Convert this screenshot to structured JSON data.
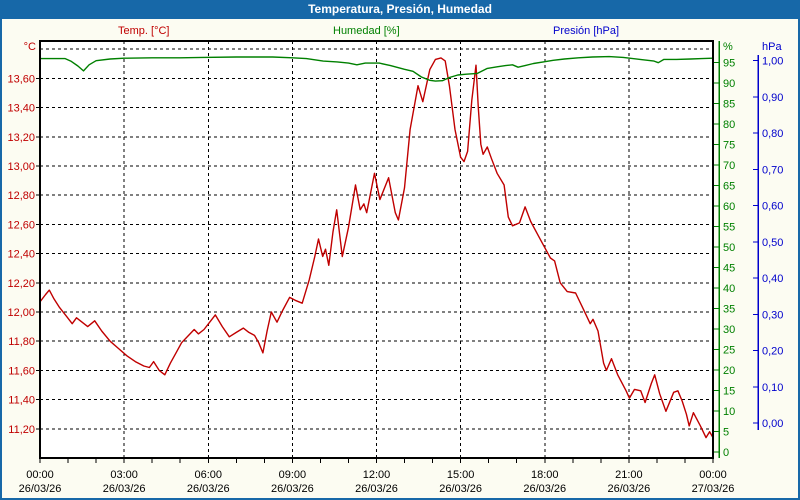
{
  "window": {
    "title": "Temperatura, Presión, Humedad"
  },
  "legend": {
    "temperature": "Temp. [°C]",
    "humidity": "Humedad [%]",
    "pressure": "Presión [hPa]"
  },
  "colors": {
    "titlebar_and_frame": "#1768A8",
    "temperature": "#C00000",
    "humidity": "#008000",
    "pressure": "#0000CC",
    "grid": "#000000",
    "plot_bg": "#FFFFFF",
    "page_bg": "#FCFCF2",
    "x_label_text": "#000000"
  },
  "chart_data": {
    "type": "line",
    "title": "Temperatura, Presión, Humedad",
    "legend_entries": [
      "Temp. [°C]",
      "Humedad [%]",
      "Presión [hPa]"
    ],
    "grid": "dashed",
    "x_axis": {
      "kind": "time",
      "start_hour": 0,
      "end_hour": 24,
      "major_tick_hours": 3,
      "minor_tick_hours": 1,
      "major_labels": [
        {
          "time": "00:00",
          "date": "26/03/26"
        },
        {
          "time": "03:00",
          "date": "26/03/26"
        },
        {
          "time": "06:00",
          "date": "26/03/26"
        },
        {
          "time": "09:00",
          "date": "26/03/26"
        },
        {
          "time": "12:00",
          "date": "26/03/26"
        },
        {
          "time": "15:00",
          "date": "26/03/26"
        },
        {
          "time": "18:00",
          "date": "26/03/26"
        },
        {
          "time": "21:00",
          "date": "26/03/26"
        },
        {
          "time": "00:00",
          "date": "27/03/26"
        }
      ]
    },
    "y_axes": {
      "temperature": {
        "unit_label": "°C",
        "color": "#C00000",
        "side": "left",
        "top_value": 13.856,
        "bottom_value": 11.0,
        "tick_values": [
          13.6,
          13.4,
          13.2,
          13.0,
          12.8,
          12.6,
          12.4,
          12.2,
          12.0,
          11.8,
          11.6,
          11.4,
          11.2
        ],
        "tick_labels": [
          "13,60",
          "13,40",
          "13,20",
          "13,00",
          "12,80",
          "12,60",
          "12,40",
          "12,20",
          "12,00",
          "11,80",
          "11,60",
          "11,40",
          "11,20"
        ],
        "gridline_values": [
          13.8,
          13.6,
          13.4,
          13.2,
          13.0,
          12.8,
          12.6,
          12.4,
          12.2,
          12.0,
          11.8,
          11.6,
          11.4,
          11.2
        ]
      },
      "humidity": {
        "unit_label": "%",
        "color": "#008000",
        "side": "right-inner",
        "top_value": 100.3,
        "bottom_value": -1.5,
        "tick_values": [
          95,
          90,
          85,
          80,
          75,
          70,
          65,
          60,
          55,
          50,
          45,
          40,
          35,
          30,
          25,
          20,
          15,
          10,
          5,
          0
        ],
        "tick_labels": [
          "95",
          "90",
          "85",
          "80",
          "75",
          "70",
          "65",
          "60",
          "55",
          "50",
          "45",
          "40",
          "35",
          "30",
          "25",
          "20",
          "15",
          "10",
          "5",
          "0"
        ]
      },
      "pressure": {
        "unit_label": "hPa",
        "color": "#0000CC",
        "side": "right-outer",
        "top_value": 1.054,
        "bottom_value": -0.096,
        "tick_values": [
          1.0,
          0.9,
          0.8,
          0.7,
          0.6,
          0.5,
          0.4,
          0.3,
          0.2,
          0.1,
          0.0
        ],
        "tick_labels": [
          "1,00",
          "0,90",
          "0,80",
          "0,70",
          "0,60",
          "0,50",
          "0,40",
          "0,30",
          "0,20",
          "0,10",
          "0,00"
        ]
      }
    },
    "series": [
      {
        "name": "Temp. [°C]",
        "axis": "temperature",
        "color": "#C00000",
        "visible": true,
        "points": [
          [
            0,
            12.07
          ],
          [
            0.2,
            12.12
          ],
          [
            0.33,
            12.15
          ],
          [
            0.5,
            12.09
          ],
          [
            0.7,
            12.03
          ],
          [
            0.95,
            11.97
          ],
          [
            1.15,
            11.92
          ],
          [
            1.3,
            11.96
          ],
          [
            1.5,
            11.93
          ],
          [
            1.7,
            11.9
          ],
          [
            1.95,
            11.94
          ],
          [
            2.2,
            11.87
          ],
          [
            2.5,
            11.8
          ],
          [
            2.8,
            11.75
          ],
          [
            3.1,
            11.7
          ],
          [
            3.4,
            11.66
          ],
          [
            3.7,
            11.63
          ],
          [
            3.9,
            11.62
          ],
          [
            4.05,
            11.66
          ],
          [
            4.25,
            11.6
          ],
          [
            4.45,
            11.57
          ],
          [
            4.65,
            11.65
          ],
          [
            4.85,
            11.72
          ],
          [
            5.05,
            11.79
          ],
          [
            5.3,
            11.84
          ],
          [
            5.5,
            11.88
          ],
          [
            5.65,
            11.85
          ],
          [
            5.85,
            11.88
          ],
          [
            6.05,
            11.93
          ],
          [
            6.25,
            11.98
          ],
          [
            6.5,
            11.9
          ],
          [
            6.75,
            11.83
          ],
          [
            7.0,
            11.86
          ],
          [
            7.25,
            11.89
          ],
          [
            7.45,
            11.86
          ],
          [
            7.65,
            11.84
          ],
          [
            7.8,
            11.79
          ],
          [
            7.95,
            11.72
          ],
          [
            8.1,
            11.87
          ],
          [
            8.25,
            12.0
          ],
          [
            8.45,
            11.93
          ],
          [
            8.65,
            12.01
          ],
          [
            8.9,
            12.1
          ],
          [
            9.1,
            12.08
          ],
          [
            9.35,
            12.06
          ],
          [
            9.6,
            12.22
          ],
          [
            9.8,
            12.38
          ],
          [
            9.93,
            12.5
          ],
          [
            10.08,
            12.38
          ],
          [
            10.18,
            12.43
          ],
          [
            10.3,
            12.32
          ],
          [
            10.45,
            12.55
          ],
          [
            10.58,
            12.7
          ],
          [
            10.78,
            12.38
          ],
          [
            11.0,
            12.58
          ],
          [
            11.25,
            12.87
          ],
          [
            11.42,
            12.7
          ],
          [
            11.55,
            12.74
          ],
          [
            11.65,
            12.68
          ],
          [
            11.93,
            12.95
          ],
          [
            12.12,
            12.77
          ],
          [
            12.43,
            12.92
          ],
          [
            12.67,
            12.68
          ],
          [
            12.78,
            12.63
          ],
          [
            13.0,
            12.85
          ],
          [
            13.2,
            13.25
          ],
          [
            13.48,
            13.55
          ],
          [
            13.65,
            13.44
          ],
          [
            13.9,
            13.66
          ],
          [
            14.1,
            13.73
          ],
          [
            14.3,
            13.74
          ],
          [
            14.45,
            13.72
          ],
          [
            14.6,
            13.55
          ],
          [
            14.8,
            13.25
          ],
          [
            15.0,
            13.06
          ],
          [
            15.12,
            13.03
          ],
          [
            15.25,
            13.1
          ],
          [
            15.4,
            13.45
          ],
          [
            15.55,
            13.69
          ],
          [
            15.63,
            13.4
          ],
          [
            15.72,
            13.15
          ],
          [
            15.8,
            13.08
          ],
          [
            15.95,
            13.13
          ],
          [
            16.1,
            13.05
          ],
          [
            16.3,
            12.95
          ],
          [
            16.55,
            12.87
          ],
          [
            16.7,
            12.65
          ],
          [
            16.85,
            12.59
          ],
          [
            17.1,
            12.61
          ],
          [
            17.3,
            12.72
          ],
          [
            17.5,
            12.62
          ],
          [
            17.75,
            12.53
          ],
          [
            18.0,
            12.44
          ],
          [
            18.2,
            12.37
          ],
          [
            18.35,
            12.35
          ],
          [
            18.55,
            12.2
          ],
          [
            18.8,
            12.14
          ],
          [
            19.1,
            12.13
          ],
          [
            19.35,
            12.03
          ],
          [
            19.5,
            11.97
          ],
          [
            19.62,
            11.92
          ],
          [
            19.72,
            11.95
          ],
          [
            19.9,
            11.87
          ],
          [
            20.1,
            11.65
          ],
          [
            20.2,
            11.6
          ],
          [
            20.38,
            11.68
          ],
          [
            20.6,
            11.57
          ],
          [
            20.9,
            11.46
          ],
          [
            21.02,
            11.41
          ],
          [
            21.2,
            11.47
          ],
          [
            21.42,
            11.46
          ],
          [
            21.58,
            11.38
          ],
          [
            21.8,
            11.51
          ],
          [
            21.92,
            11.57
          ],
          [
            22.1,
            11.44
          ],
          [
            22.32,
            11.32
          ],
          [
            22.6,
            11.45
          ],
          [
            22.75,
            11.46
          ],
          [
            22.9,
            11.39
          ],
          [
            23.05,
            11.3
          ],
          [
            23.15,
            11.22
          ],
          [
            23.3,
            11.31
          ],
          [
            23.55,
            11.22
          ],
          [
            23.75,
            11.14
          ],
          [
            23.88,
            11.18
          ],
          [
            24,
            11.14
          ]
        ]
      },
      {
        "name": "Humedad [%]",
        "axis": "humidity",
        "color": "#008000",
        "visible": true,
        "points": [
          [
            0,
            96.0
          ],
          [
            0.9,
            96.0
          ],
          [
            1.1,
            95.4
          ],
          [
            1.35,
            94.2
          ],
          [
            1.55,
            93.0
          ],
          [
            1.75,
            94.5
          ],
          [
            2.0,
            95.5
          ],
          [
            2.5,
            95.9
          ],
          [
            3.0,
            96.1
          ],
          [
            4.0,
            96.2
          ],
          [
            5.0,
            96.2
          ],
          [
            5.8,
            96.3
          ],
          [
            7.0,
            96.4
          ],
          [
            8.3,
            96.4
          ],
          [
            9.0,
            96.2
          ],
          [
            9.5,
            96.0
          ],
          [
            10.1,
            95.4
          ],
          [
            10.6,
            95.2
          ],
          [
            11.0,
            94.9
          ],
          [
            11.3,
            94.5
          ],
          [
            11.6,
            94.9
          ],
          [
            12.1,
            94.9
          ],
          [
            12.5,
            94.3
          ],
          [
            13.0,
            93.4
          ],
          [
            13.3,
            92.9
          ],
          [
            13.6,
            91.5
          ],
          [
            13.9,
            90.7
          ],
          [
            14.1,
            90.5
          ],
          [
            14.35,
            90.6
          ],
          [
            14.6,
            91.4
          ],
          [
            14.9,
            92.0
          ],
          [
            15.2,
            92.2
          ],
          [
            15.6,
            92.4
          ],
          [
            15.95,
            93.6
          ],
          [
            16.3,
            94.0
          ],
          [
            16.6,
            94.3
          ],
          [
            16.85,
            94.5
          ],
          [
            17.05,
            93.9
          ],
          [
            17.3,
            94.3
          ],
          [
            17.6,
            94.8
          ],
          [
            17.95,
            95.2
          ],
          [
            18.3,
            95.6
          ],
          [
            18.7,
            95.9
          ],
          [
            19.2,
            96.2
          ],
          [
            19.7,
            96.4
          ],
          [
            20.3,
            96.5
          ],
          [
            20.8,
            96.3
          ],
          [
            21.4,
            95.8
          ],
          [
            21.9,
            95.4
          ],
          [
            22.05,
            95.0
          ],
          [
            22.25,
            95.8
          ],
          [
            22.7,
            95.8
          ],
          [
            23.2,
            95.9
          ],
          [
            23.6,
            96.0
          ],
          [
            24,
            96.1
          ]
        ]
      },
      {
        "name": "Presión [hPa]",
        "axis": "pressure",
        "color": "#0000CC",
        "visible": false,
        "points": []
      }
    ]
  }
}
